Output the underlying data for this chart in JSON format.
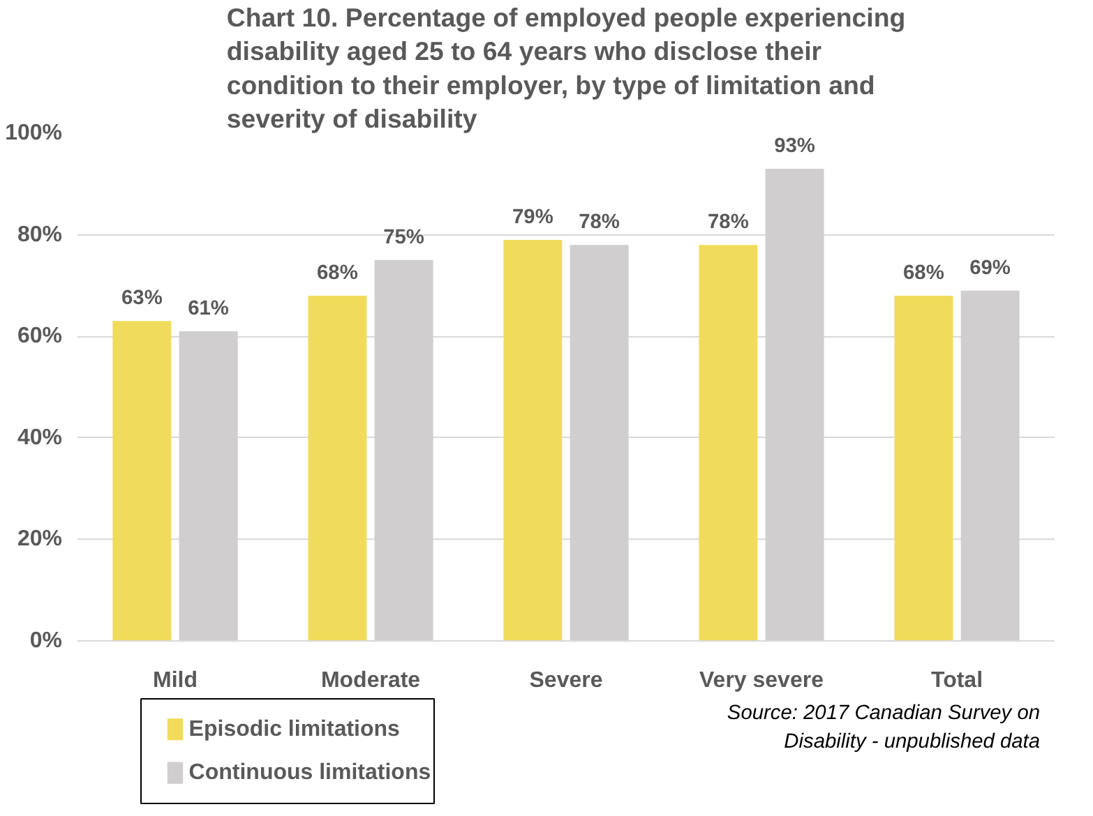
{
  "chart_data": {
    "type": "bar",
    "title": "Chart 10. Percentage of employed people experiencing disability aged 25 to 64 years who disclose their condition to their employer, by type of limitation and severity of disability",
    "categories": [
      "Mild",
      "Moderate",
      "Severe",
      "Very severe",
      "Total"
    ],
    "series": [
      {
        "name": "Episodic limitations",
        "color": "#f0dc5a",
        "values": [
          63,
          68,
          79,
          78,
          68
        ],
        "value_labels": [
          "63%",
          "68%",
          "79%",
          "78%",
          "68%"
        ]
      },
      {
        "name": "Continuous limitations",
        "color": "#d0cece",
        "values": [
          61,
          75,
          78,
          93,
          69
        ],
        "value_labels": [
          "61%",
          "75%",
          "78%",
          "93%",
          "69%"
        ]
      }
    ],
    "ylim": [
      0,
      100
    ],
    "yticks": [
      {
        "value": 0,
        "label": "0%"
      },
      {
        "value": 20,
        "label": "20%"
      },
      {
        "value": 40,
        "label": "40%"
      },
      {
        "value": 60,
        "label": "60%"
      },
      {
        "value": 80,
        "label": "80%"
      },
      {
        "value": 100,
        "label": "100%"
      }
    ],
    "grid": "y",
    "legend": "bottom left",
    "annotations": [
      "Source: 2017 Canadian Survey on Disability - unpublished data"
    ]
  }
}
